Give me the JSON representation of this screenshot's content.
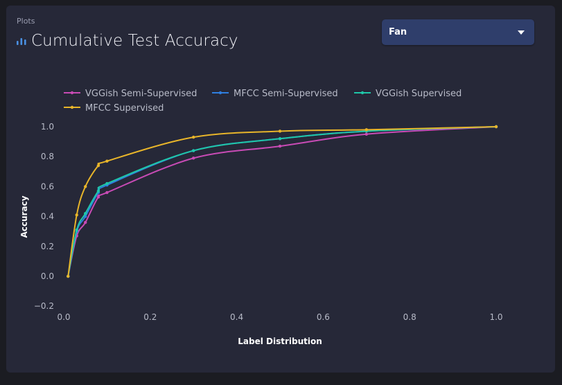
{
  "header": {
    "breadcrumb": "Plots",
    "title": "Cumulative Test Accuracy",
    "title_icon": "bar-chart-icon",
    "accent_color": "#4a90e2"
  },
  "selector": {
    "value": "Fan",
    "icon": "caret-down-icon"
  },
  "chart_data": {
    "type": "line",
    "xlabel": "Label Distribution",
    "ylabel": "Accuracy",
    "xlim": [
      0,
      1.0
    ],
    "ylim": [
      -0.2,
      1.0
    ],
    "xticks": [
      "0.0",
      "0.2",
      "0.4",
      "0.6",
      "0.8",
      "1.0"
    ],
    "yticks": [
      "1.0",
      "0.8",
      "0.6",
      "0.4",
      "0.2",
      "0.0",
      "−0.2"
    ],
    "grid": false,
    "legend_position": "top-left",
    "series": [
      {
        "name": "VGGish Semi-Supervised",
        "color": "#c84bb5",
        "x": [
          0.01,
          0.03,
          0.05,
          0.08,
          0.1,
          0.3,
          0.5,
          0.7,
          1.0
        ],
        "y": [
          0.0,
          0.27,
          0.36,
          0.53,
          0.56,
          0.79,
          0.87,
          0.95,
          1.0
        ]
      },
      {
        "name": "MFCC Semi-Supervised",
        "color": "#2f7fe0",
        "x": [
          0.01,
          0.03,
          0.05,
          0.08,
          0.1,
          0.3,
          0.5,
          0.7,
          1.0
        ],
        "y": [
          0.0,
          0.3,
          0.4,
          0.56,
          0.61,
          0.84,
          0.92,
          0.97,
          1.0
        ]
      },
      {
        "name": "VGGish Supervised",
        "color": "#1fc7a8",
        "x": [
          0.01,
          0.03,
          0.05,
          0.08,
          0.1,
          0.3,
          0.5,
          0.7,
          1.0
        ],
        "y": [
          0.0,
          0.31,
          0.42,
          0.57,
          0.62,
          0.84,
          0.92,
          0.97,
          1.0
        ]
      },
      {
        "name": "MFCC Supervised",
        "color": "#e8b52a",
        "x": [
          0.01,
          0.03,
          0.05,
          0.08,
          0.1,
          0.3,
          0.5,
          0.7,
          1.0
        ],
        "y": [
          0.0,
          0.41,
          0.6,
          0.74,
          0.77,
          0.93,
          0.97,
          0.98,
          1.0
        ]
      }
    ]
  }
}
